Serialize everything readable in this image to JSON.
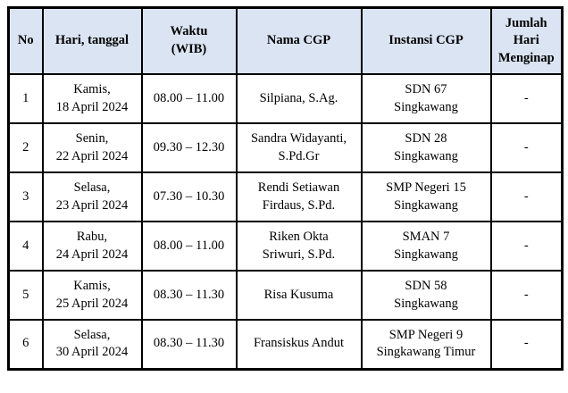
{
  "colors": {
    "header_bg": "#dbe4f2",
    "border": "#000000",
    "text": "#000000",
    "page_bg": "#ffffff"
  },
  "table": {
    "headers": {
      "no": "No",
      "hari": "Hari, tanggal",
      "waktu": "Waktu\n(WIB)",
      "nama": "Nama CGP",
      "instansi": "Instansi CGP",
      "jumlah": "Jumlah\nHari\nMenginap"
    },
    "rows": [
      {
        "no": "1",
        "hari": "Kamis,\n18 April 2024",
        "waktu": "08.00 – 11.00",
        "nama": "Silpiana, S.Ag.",
        "instansi": "SDN 67\nSingkawang",
        "jumlah": "-"
      },
      {
        "no": "2",
        "hari": "Senin,\n22 April 2024",
        "waktu": "09.30 – 12.30",
        "nama": "Sandra Widayanti,\nS.Pd.Gr",
        "instansi": "SDN 28\nSingkawang",
        "jumlah": "-"
      },
      {
        "no": "3",
        "hari": "Selasa,\n23 April 2024",
        "waktu": "07.30 – 10.30",
        "nama": "Rendi Setiawan\nFirdaus, S.Pd.",
        "instansi": "SMP Negeri 15\nSingkawang",
        "jumlah": "-"
      },
      {
        "no": "4",
        "hari": "Rabu,\n24 April 2024",
        "waktu": "08.00 – 11.00",
        "nama": "Riken Okta\nSriwuri, S.Pd.",
        "instansi": "SMAN 7\nSingkawang",
        "jumlah": "-"
      },
      {
        "no": "5",
        "hari": "Kamis,\n25 April 2024",
        "waktu": "08.30 – 11.30",
        "nama": "Risa Kusuma",
        "instansi": "SDN 58\nSingkawang",
        "jumlah": "-"
      },
      {
        "no": "6",
        "hari": "Selasa,\n30 April 2024",
        "waktu": "08.30 – 11.30",
        "nama": "Fransiskus Andut",
        "instansi": "SMP Negeri 9\nSingkawang Timur",
        "jumlah": "-"
      }
    ]
  }
}
